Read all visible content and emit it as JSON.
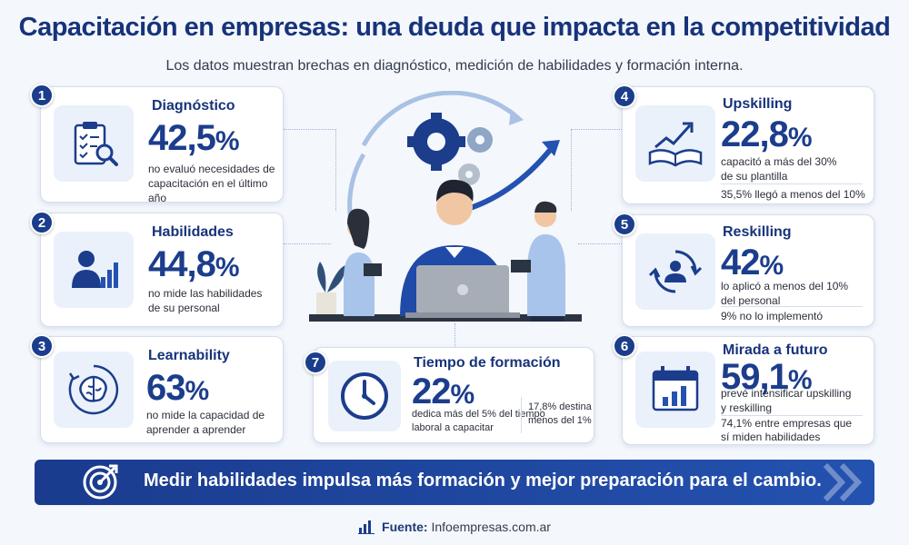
{
  "header": {
    "title": "Capacitación en empresas: una deuda que impacta en la competitividad",
    "subtitle": "Los datos muestran brechas en diagnóstico, medición de habilidades y formación interna."
  },
  "cards": {
    "c1": {
      "number": "1",
      "title": "Diagnóstico",
      "stat": "42,5",
      "pct": "%",
      "desc1": "no evaluó necesidades de",
      "desc2": "capacitación en el último año",
      "icon": "clipboard-search-icon"
    },
    "c2": {
      "number": "2",
      "title": "Habilidades",
      "stat": "44,8",
      "pct": "%",
      "desc1": "no mide las habilidades",
      "desc2": "de su personal",
      "icon": "person-chart-icon"
    },
    "c3": {
      "number": "3",
      "title": "Learnability",
      "stat": "63",
      "pct": "%",
      "desc1": "no mide la capacidad de",
      "desc2": "aprender a aprender",
      "icon": "brain-cycle-icon"
    },
    "c4": {
      "number": "4",
      "title": "Upskilling",
      "stat": "22,8",
      "pct": "%",
      "desc1": "capacitó a más del 30%",
      "desc2": "de su plantilla",
      "note": "35,5% llegó a menos del 10%",
      "icon": "book-growth-icon"
    },
    "c5": {
      "number": "5",
      "title": "Reskilling",
      "stat": "42",
      "pct": "%",
      "desc1": "lo aplicó a menos del 10%",
      "desc2": "del personal",
      "note": "9% no lo implementó",
      "icon": "person-refresh-icon"
    },
    "c6": {
      "number": "6",
      "title": "Mirada a futuro",
      "stat": "59,1",
      "pct": "%",
      "desc1": "prevé intensificar upskilling",
      "desc2": "y reskilling",
      "note1": "74,1% entre empresas que",
      "note2": "sí miden habilidades",
      "icon": "calendar-chart-icon"
    },
    "c7": {
      "number": "7",
      "title": "Tiempo de formación",
      "stat": "22",
      "pct": "%",
      "desc1": "dedica más del 5% del tiempo",
      "desc2": "laboral a capacitar",
      "side1": "17,8% destina",
      "side2": "menos del 1%",
      "icon": "clock-icon"
    }
  },
  "banner": {
    "text": "Medir habilidades impulsa más formación y mejor preparación para el cambio.",
    "icon": "target-arrow-icon"
  },
  "footer": {
    "label": "Fuente:",
    "source": "Infoempresas.com.ar",
    "icon": "bar-chart-icon"
  },
  "colors": {
    "primary": "#1b3d8c",
    "accent": "#2452b0",
    "background": "#f4f7fc"
  }
}
